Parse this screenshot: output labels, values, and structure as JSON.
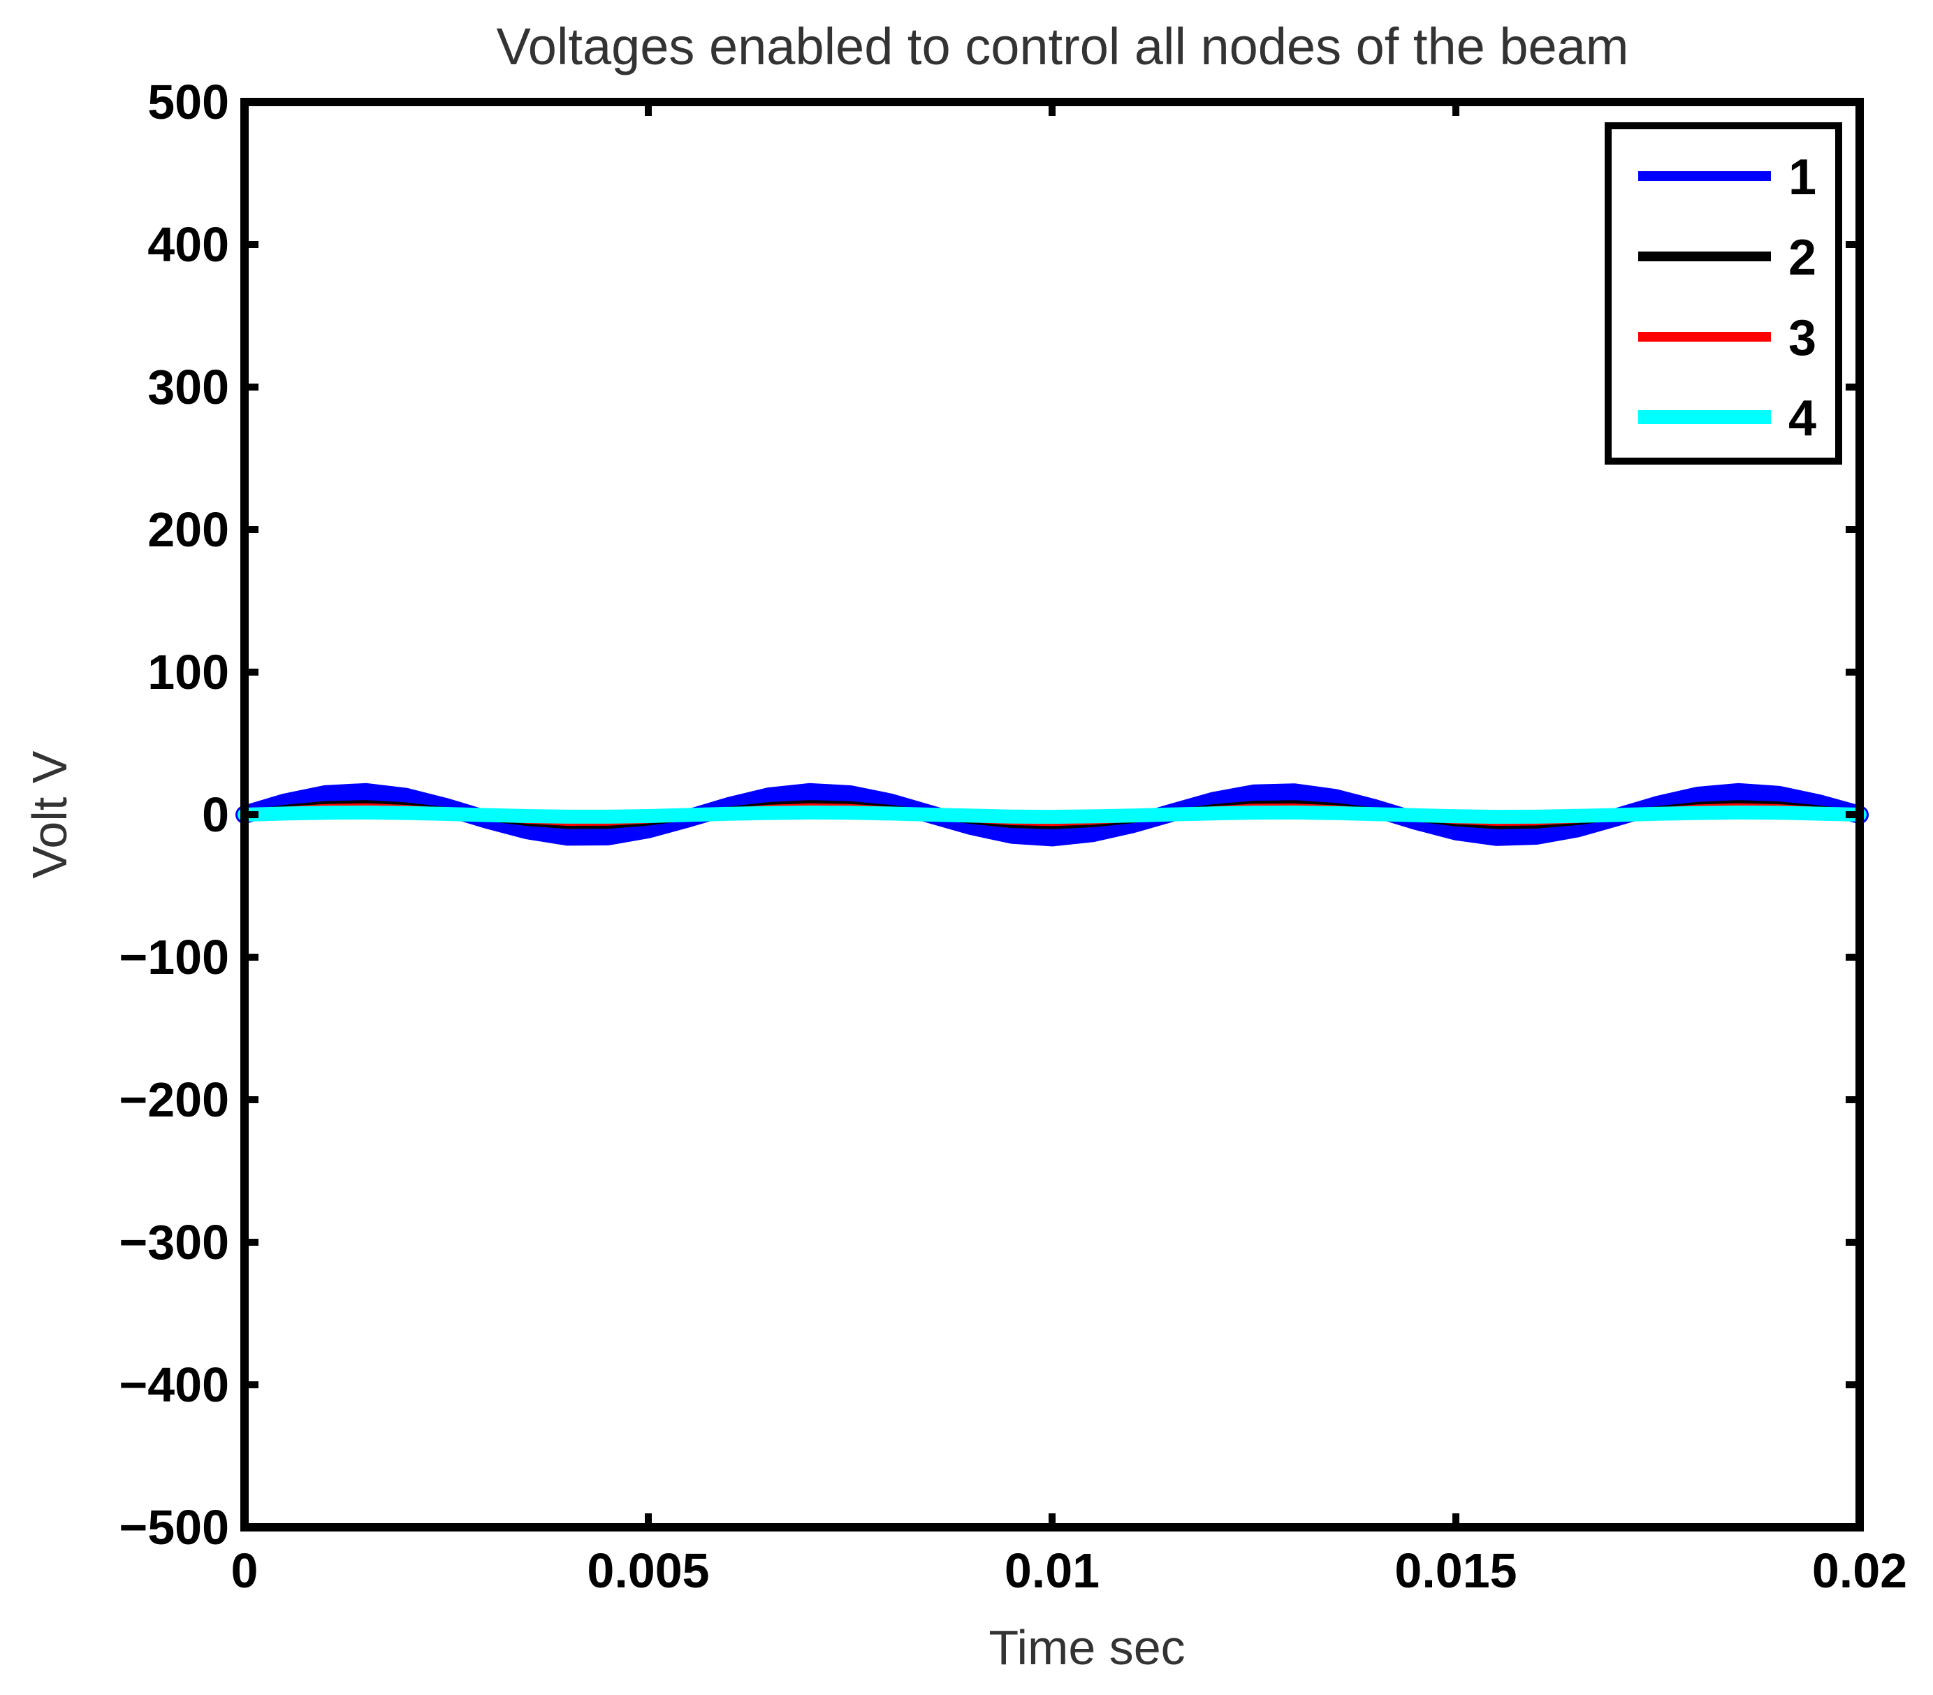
{
  "chart_data": {
    "type": "line",
    "title": "Voltages enabled to control all nodes of the beam",
    "xlabel": "Time sec",
    "ylabel": "Volt V",
    "xlim": [
      0,
      0.02
    ],
    "ylim": [
      -500,
      500
    ],
    "xticks": [
      0,
      0.005,
      0.01,
      0.015,
      0.02
    ],
    "xtick_labels": [
      "0",
      "0.005",
      "0.01",
      "0.015",
      "0.02"
    ],
    "yticks": [
      500,
      400,
      300,
      200,
      100,
      0,
      -100,
      -200,
      -300,
      -400,
      -500
    ],
    "ytick_labels": [
      "500",
      "400",
      "300",
      "200",
      "100",
      "0",
      "−100",
      "−200",
      "−300",
      "−400",
      "−500"
    ],
    "grid": false,
    "legend_position": "top-right",
    "x": [
      0,
      0.0005,
      0.001,
      0.0015,
      0.002,
      0.0025,
      0.003,
      0.0035,
      0.004,
      0.0045,
      0.005,
      0.0055,
      0.006,
      0.0065,
      0.007,
      0.0075,
      0.008,
      0.0085,
      0.009,
      0.0095,
      0.01,
      0.0105,
      0.011,
      0.0115,
      0.012,
      0.0125,
      0.013,
      0.0135,
      0.014,
      0.0145,
      0.015,
      0.0155,
      0.016,
      0.0165,
      0.017,
      0.0175,
      0.018,
      0.0185,
      0.019,
      0.0195,
      0.02
    ],
    "series": [
      {
        "name": "1",
        "color": "#0000ff",
        "values": [
          0,
          8.5,
          14.3,
          15.8,
          12.4,
          5.2,
          -3.4,
          -10.9,
          -15.4,
          -15.2,
          -10.2,
          -2.5,
          6,
          12.8,
          15.8,
          14.2,
          8.5,
          0.2,
          -7.9,
          -14,
          -15.9,
          -12.9,
          -6.5,
          1.6,
          9.6,
          14.8,
          15.6,
          11.7,
          4.4,
          -4.2,
          -11.6,
          -15.6,
          -14.7,
          -9.6,
          -1.6,
          6.8,
          13.3,
          15.8,
          13.8,
          7.8,
          -0.1
        ]
      },
      {
        "name": "2",
        "color": "#000000",
        "values": [
          0,
          3.9,
          6.6,
          7.3,
          5.7,
          2.4,
          -1.6,
          -5,
          -7.1,
          -7,
          -4.7,
          -1.1,
          2.8,
          5.9,
          7.3,
          6.5,
          3.9,
          0.1,
          -3.6,
          -6.4,
          -7.3,
          -5.9,
          -3,
          0.7,
          4.4,
          6.8,
          7.2,
          5.4,
          2,
          -1.9,
          -5.3,
          -7.2,
          -6.8,
          -4.4,
          -0.7,
          3.1,
          6.1,
          7.3,
          6.3,
          3.6,
          0
        ]
      },
      {
        "name": "3",
        "color": "#ff0000",
        "values": [
          0,
          2.7,
          4.5,
          5,
          3.9,
          1.6,
          -1.1,
          -3.4,
          -4.9,
          -4.8,
          -3.2,
          -0.8,
          1.9,
          4,
          5,
          4.5,
          2.7,
          0.1,
          -2.5,
          -4.4,
          -5,
          -4.1,
          -2,
          0.5,
          3,
          4.7,
          4.9,
          3.7,
          1.4,
          -1.3,
          -3.7,
          -4.9,
          -4.6,
          -3,
          -0.5,
          2.1,
          4.2,
          5,
          4.4,
          2.5,
          0
        ]
      },
      {
        "name": "4",
        "color": "#00ffff",
        "values": [
          0,
          0.8,
          1.3,
          1.5,
          1.2,
          0.5,
          -0.3,
          -1,
          -1.4,
          -1.4,
          -1,
          -0.2,
          0.6,
          1.2,
          1.5,
          1.3,
          0.8,
          0,
          -0.7,
          -1.3,
          -1.5,
          -1.2,
          -0.6,
          0.2,
          0.9,
          1.4,
          1.5,
          1.1,
          0.4,
          -0.4,
          -1.1,
          -1.5,
          -1.4,
          -0.9,
          -0.2,
          0.6,
          1.2,
          1.5,
          1.3,
          0.7,
          0
        ]
      }
    ]
  }
}
